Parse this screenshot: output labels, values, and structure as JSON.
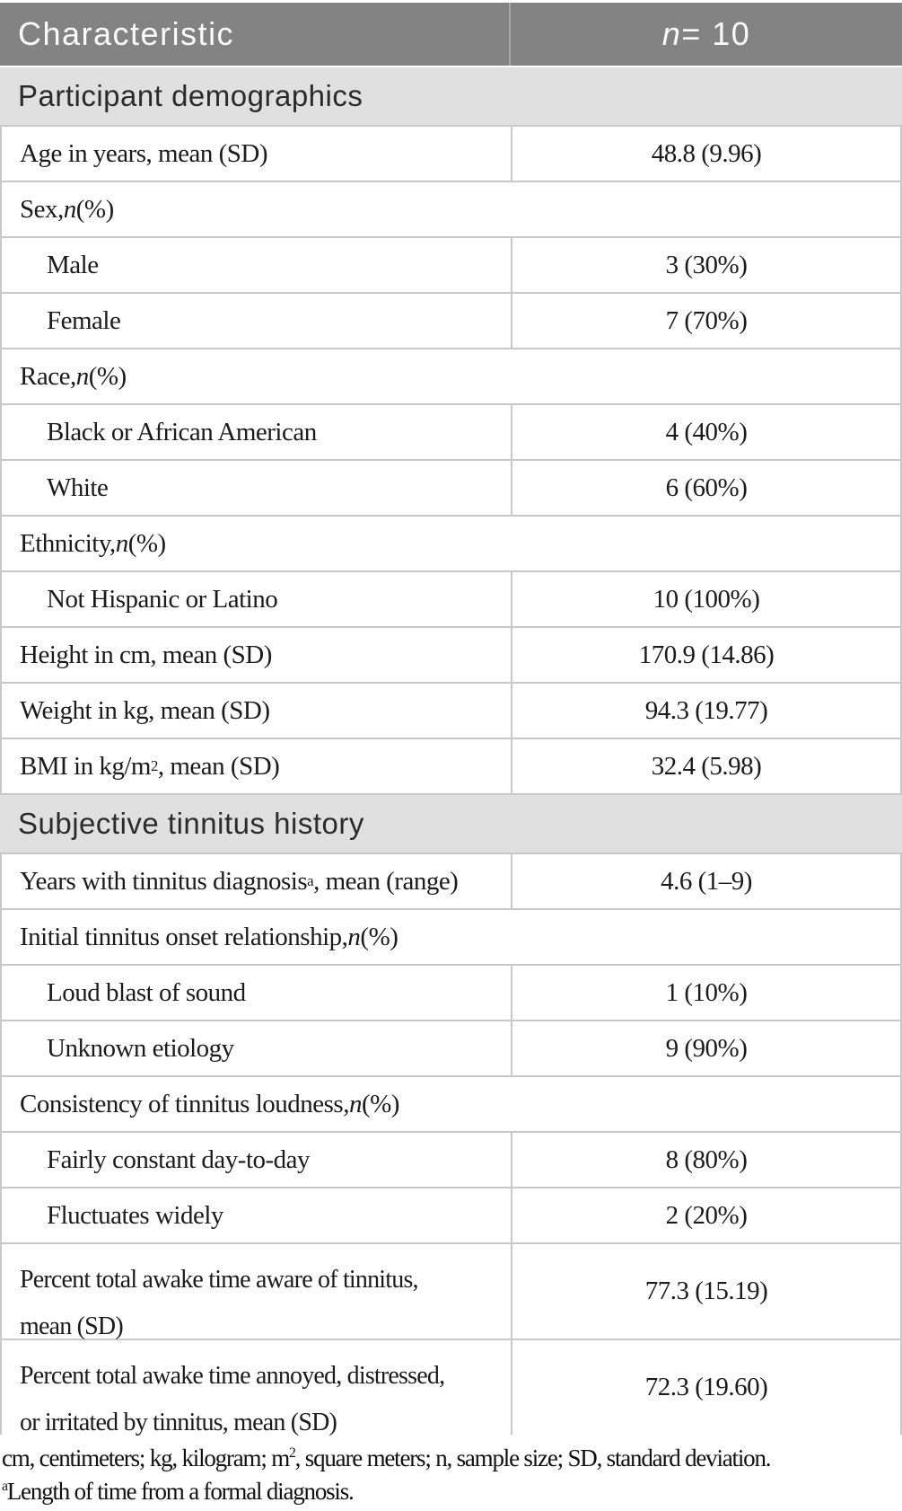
{
  "header": {
    "col1": "Characteristic",
    "col2_it": "n",
    "col2_post": " = 10"
  },
  "rows": [
    {
      "type": "section",
      "label": "Participant demographics"
    },
    {
      "type": "data",
      "pre": "Age in years, mean (SD)",
      "value": "48.8 (9.96)"
    },
    {
      "type": "span",
      "pre": "Sex, ",
      "it": "n",
      "post": " (%)"
    },
    {
      "type": "data-indent",
      "pre": "Male",
      "value": "3 (30%)"
    },
    {
      "type": "data-indent",
      "pre": "Female",
      "value": "7 (70%)"
    },
    {
      "type": "span",
      "pre": "Race, ",
      "it": "n",
      "post": " (%)"
    },
    {
      "type": "data-indent",
      "pre": "Black or African American",
      "value": "4 (40%)"
    },
    {
      "type": "data-indent",
      "pre": "White",
      "value": "6 (60%)"
    },
    {
      "type": "span",
      "pre": "Ethnicity, ",
      "it": "n",
      "post": " (%)"
    },
    {
      "type": "data-indent",
      "pre": "Not Hispanic or Latino",
      "value": "10 (100%)"
    },
    {
      "type": "data",
      "pre": "Height in cm, mean (SD)",
      "value": "170.9 (14.86)"
    },
    {
      "type": "data",
      "pre": "Weight in kg, mean (SD)",
      "value": "94.3 (19.77)"
    },
    {
      "type": "data",
      "pre": "BMI in kg/m",
      "sup": "2",
      "post": ", mean (SD)",
      "value": "32.4 (5.98)"
    },
    {
      "type": "section",
      "label": "Subjective tinnitus history"
    },
    {
      "type": "data",
      "pre": "Years with tinnitus diagnosis",
      "sup": "a",
      "post": ", mean (range)",
      "value": "4.6 (1–9)"
    },
    {
      "type": "span",
      "pre": "Initial tinnitus onset relationship, ",
      "it": "n",
      "post": " (%)"
    },
    {
      "type": "data-indent",
      "pre": "Loud blast of sound",
      "value": "1 (10%)"
    },
    {
      "type": "data-indent",
      "pre": "Unknown etiology",
      "value": "9 (90%)"
    },
    {
      "type": "span",
      "pre": "Consistency of tinnitus loudness, ",
      "it": "n",
      "post": " (%)"
    },
    {
      "type": "data-indent",
      "pre": "Fairly constant day-to-day",
      "value": "8 (80%)"
    },
    {
      "type": "data-indent",
      "pre": "Fluctuates widely",
      "value": "2 (20%)"
    },
    {
      "type": "data-tall",
      "line1": "Percent total awake time aware of tinnitus,",
      "line2": "mean (SD)",
      "value": "77.3 (15.19)"
    },
    {
      "type": "data-tall",
      "line1": "Percent total awake time annoyed, distressed,",
      "line2": "or irritated by tinnitus, mean (SD)",
      "value": "72.3 (19.60)"
    }
  ],
  "footnotes": [
    {
      "pre": "cm, centimeters; kg, kilogram; m",
      "sup": "2",
      "post": ", square meters; n, sample size; SD, standard deviation."
    },
    {
      "pre": "",
      "sup": "a",
      "post": "Length of time from a formal diagnosis."
    }
  ],
  "colors": {
    "header_bg": "#838383",
    "header_text": "#fbfbfb",
    "section_bg": "#e0e0e0",
    "border": "#c9c9c9",
    "body_text": "#1b1b1b"
  }
}
